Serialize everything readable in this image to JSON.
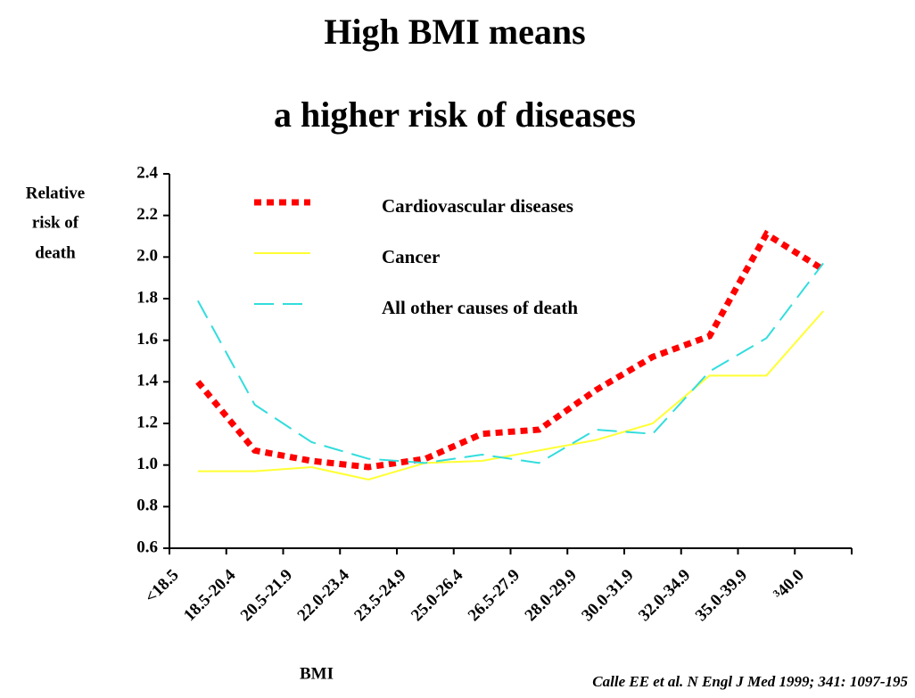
{
  "chart_data": {
    "type": "line",
    "title": [
      "High BMI means",
      "a higher risk of diseases"
    ],
    "y_label": [
      "Relative",
      "risk of",
      "death"
    ],
    "x_label": "BMI",
    "source": "Calle EE et al. N Engl J Med 1999; 341: 1097-195",
    "categories": [
      "<18.5",
      "18.5-20.4",
      "20.5-21.9",
      "22.0-23.4",
      "23.5-24.9",
      "25.0-26.4",
      "26.5-27.9",
      "28.0-29.9",
      "30.0-31.9",
      "32.0-34.9",
      "35.0-39.9",
      "³40.0"
    ],
    "series": [
      {
        "name": "Cardiovascular diseases",
        "color": "#ff0000",
        "style": "dotted",
        "values": [
          1.4,
          1.07,
          1.02,
          0.99,
          1.03,
          1.15,
          1.17,
          1.36,
          1.52,
          1.62,
          2.11,
          1.94
        ]
      },
      {
        "name": "Cancer",
        "color": "#ffff33",
        "style": "solid",
        "values": [
          0.97,
          0.97,
          0.99,
          0.93,
          1.01,
          1.02,
          1.07,
          1.12,
          1.2,
          1.43,
          1.43,
          1.74
        ]
      },
      {
        "name": "All other causes of death",
        "color": "#33dddd",
        "style": "dashed",
        "values": [
          1.79,
          1.29,
          1.11,
          1.03,
          1.01,
          1.05,
          1.01,
          1.17,
          1.15,
          1.45,
          1.61,
          1.97
        ]
      }
    ],
    "ylim": [
      0.6,
      2.4
    ],
    "yticks": [
      0.6,
      0.8,
      {
        "value": 1.0,
        "label": "1.0"
      },
      1.2,
      1.4,
      1.6,
      1.8,
      {
        "value": 2.0,
        "label": "2.0"
      },
      2.2,
      2.4
    ]
  }
}
